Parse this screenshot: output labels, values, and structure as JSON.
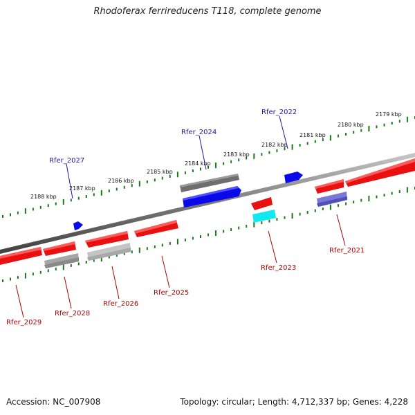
{
  "title": "Rhodoferax ferrireducens T118, complete genome",
  "footer": {
    "accession": "Accession: NC_007908",
    "summary": "Topology: circular; Length: 4,712,337 bp; Genes: 4,228"
  },
  "colors": {
    "forward": "#e81010",
    "reverse_blue": "#0a0ae8",
    "grey": "#6e6e6e",
    "light_grey": "#c4c4c4",
    "cyan": "#12e8f0",
    "lavender": "#7878d8",
    "ticks": "#1a7a1a"
  },
  "scale_labels": [
    "2179 kbp",
    "2180 kbp",
    "2181 kbp",
    "2182 kbp",
    "2183 kbp",
    "2184 kbp",
    "2185 kbp",
    "2186 kbp",
    "2187 kbp",
    "2188 kbp"
  ],
  "gene_labels": [
    "Rfer_2022",
    "Rfer_2024",
    "Rfer_2027",
    "Rfer_2021",
    "Rfer_2023",
    "Rfer_2025",
    "Rfer_2026",
    "Rfer_2028",
    "Rfer_2029"
  ]
}
